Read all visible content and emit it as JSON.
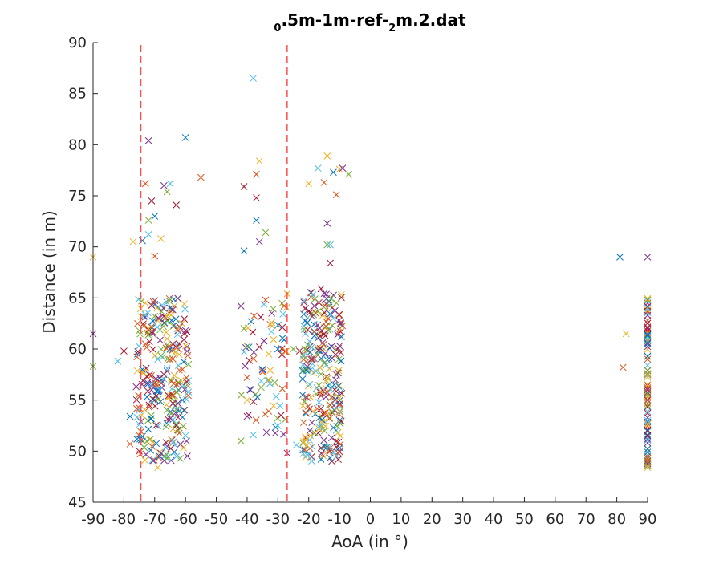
{
  "chart_data": {
    "type": "scatter",
    "title_parts": [
      {
        "text": "0",
        "sub": true
      },
      {
        "text": ".5m-1m-ref-",
        "sub": false
      },
      {
        "text": "2",
        "sub": true
      },
      {
        "text": "m.2.dat",
        "sub": false
      }
    ],
    "xlabel": "AoA (in °)",
    "ylabel": "Distance (in m)",
    "xlim": [
      -90,
      90
    ],
    "ylim": [
      45,
      90
    ],
    "xticks": [
      -90,
      -80,
      -70,
      -60,
      -50,
      -40,
      -30,
      -20,
      -10,
      0,
      10,
      20,
      30,
      40,
      50,
      60,
      70,
      80,
      90
    ],
    "yticks": [
      45,
      50,
      55,
      60,
      65,
      70,
      75,
      80,
      85,
      90
    ],
    "grid": false,
    "marker": "x",
    "colors": [
      "#0072BD",
      "#D95319",
      "#EDB120",
      "#7E2F8E",
      "#77AC30",
      "#4DBEEE",
      "#A2142F"
    ],
    "vertical_lines": [
      {
        "x": -74.5,
        "color": "#FF4D4D",
        "style": "dashed"
      },
      {
        "x": -27,
        "color": "#FF4D4D",
        "style": "dashed"
      }
    ],
    "points": [
      [
        -90,
        69.0
      ],
      [
        -90,
        61.5
      ],
      [
        -90,
        58.3
      ],
      [
        -82,
        58.8
      ],
      [
        -80,
        59.8
      ],
      [
        -78,
        53.4
      ],
      [
        -78,
        50.7
      ],
      [
        -77,
        70.5
      ],
      [
        -76,
        56.3
      ],
      [
        -75,
        61.8
      ],
      [
        -75,
        54.0
      ],
      [
        -75,
        50.0
      ],
      [
        -74,
        70.6
      ],
      [
        -73,
        76.2
      ],
      [
        -73,
        64.5
      ],
      [
        -72,
        80.4
      ],
      [
        -72,
        72.6
      ],
      [
        -72,
        71.2
      ],
      [
        -71,
        74.5
      ],
      [
        -70,
        73.0
      ],
      [
        -70,
        69.1
      ],
      [
        -68,
        70.8
      ],
      [
        -67,
        76.0
      ],
      [
        -66,
        75.4
      ],
      [
        -65,
        76.2
      ],
      [
        -63,
        74.1
      ],
      [
        -60,
        80.7
      ],
      [
        -55,
        76.8
      ],
      [
        -69,
        48.4
      ],
      [
        -68,
        49.8
      ],
      [
        -66,
        49.3
      ],
      [
        -64,
        50.9
      ],
      [
        -63,
        52.5
      ],
      [
        -61,
        55.0
      ],
      [
        -61,
        58.0
      ],
      [
        -60,
        60.3
      ],
      [
        -60,
        61.8
      ],
      [
        -59,
        58.5
      ],
      [
        -59,
        55.8
      ],
      [
        -62,
        60.5
      ],
      [
        -74,
        58.0
      ],
      [
        -73,
        60.5
      ],
      [
        -72,
        62.0
      ],
      [
        -71,
        56.0
      ],
      [
        -70,
        63.2
      ],
      [
        -69,
        59.0
      ],
      [
        -67,
        57.5
      ],
      [
        -65,
        64.0
      ],
      [
        -64,
        55.5
      ],
      [
        -66,
        61.0
      ],
      [
        -42,
        64.2
      ],
      [
        -41,
        62.0
      ],
      [
        -41,
        59.7
      ],
      [
        -41,
        75.9
      ],
      [
        -41,
        69.6
      ],
      [
        -40,
        57.2
      ],
      [
        -40,
        55.0
      ],
      [
        -40,
        53.4
      ],
      [
        -42,
        51.0
      ],
      [
        -38,
        86.5
      ],
      [
        -37,
        74.8
      ],
      [
        -37,
        72.6
      ],
      [
        -37,
        77.1
      ],
      [
        -36,
        78.4
      ],
      [
        -36,
        70.5
      ],
      [
        -34,
        71.4
      ],
      [
        -38,
        51.6
      ],
      [
        -36,
        60.2
      ],
      [
        -35,
        58.0
      ],
      [
        -34,
        64.8
      ],
      [
        -33,
        59.5
      ],
      [
        -32,
        63.5
      ],
      [
        -31,
        56.7
      ],
      [
        -30,
        52.5
      ],
      [
        -29,
        53.5
      ],
      [
        -30,
        60.0
      ],
      [
        -28,
        64.2
      ],
      [
        -27,
        65.4
      ],
      [
        -27,
        49.8
      ],
      [
        -25,
        60.0
      ],
      [
        -24,
        50.6
      ],
      [
        -23,
        59.8
      ],
      [
        -22,
        55.5
      ],
      [
        -21,
        53.8
      ],
      [
        -20,
        76.2
      ],
      [
        -19,
        59.0
      ],
      [
        -18,
        64.9
      ],
      [
        -17,
        77.7
      ],
      [
        -16,
        65.9
      ],
      [
        -16,
        49.2
      ],
      [
        -15,
        76.3
      ],
      [
        -14,
        78.9
      ],
      [
        -14,
        72.3
      ],
      [
        -14,
        70.2
      ],
      [
        -13,
        70.2
      ],
      [
        -13,
        68.4
      ],
      [
        -12,
        77.3
      ],
      [
        -11,
        75.1
      ],
      [
        -10,
        77.6
      ],
      [
        -9,
        77.7
      ],
      [
        -7,
        77.1
      ],
      [
        -11,
        49.5
      ],
      [
        -11,
        50.4
      ],
      [
        -12,
        52.3
      ],
      [
        -13,
        54.5
      ],
      [
        -10,
        55.2
      ],
      [
        -10,
        60.3
      ],
      [
        -11,
        64.5
      ],
      [
        -12,
        63.0
      ],
      [
        -15,
        61.5
      ],
      [
        81,
        69.0
      ],
      [
        82,
        58.2
      ],
      [
        83,
        61.5
      ],
      [
        90,
        69.0
      ],
      [
        90,
        64.8
      ],
      [
        90,
        64.0
      ],
      [
        90,
        62.0
      ],
      [
        90,
        60.5
      ],
      [
        90,
        59.0
      ],
      [
        90,
        57.5
      ],
      [
        90,
        56.0
      ],
      [
        90,
        54.5
      ],
      [
        90,
        53.0
      ],
      [
        90,
        51.5
      ],
      [
        90,
        50.2
      ],
      [
        90,
        49.3
      ],
      [
        90,
        48.4
      ]
    ],
    "clusters": [
      {
        "xmin": -76,
        "xmax": -59,
        "ymin": 49.0,
        "ymax": 65.0,
        "count": 260
      },
      {
        "xmin": -42,
        "xmax": -27,
        "ymin": 51.5,
        "ymax": 64.5,
        "count": 60
      },
      {
        "xmin": -22,
        "xmax": -9,
        "ymin": 49.0,
        "ymax": 66.0,
        "count": 260
      },
      {
        "xmin": 90,
        "xmax": 90,
        "ymin": 48.5,
        "ymax": 65.0,
        "count": 80
      }
    ]
  }
}
